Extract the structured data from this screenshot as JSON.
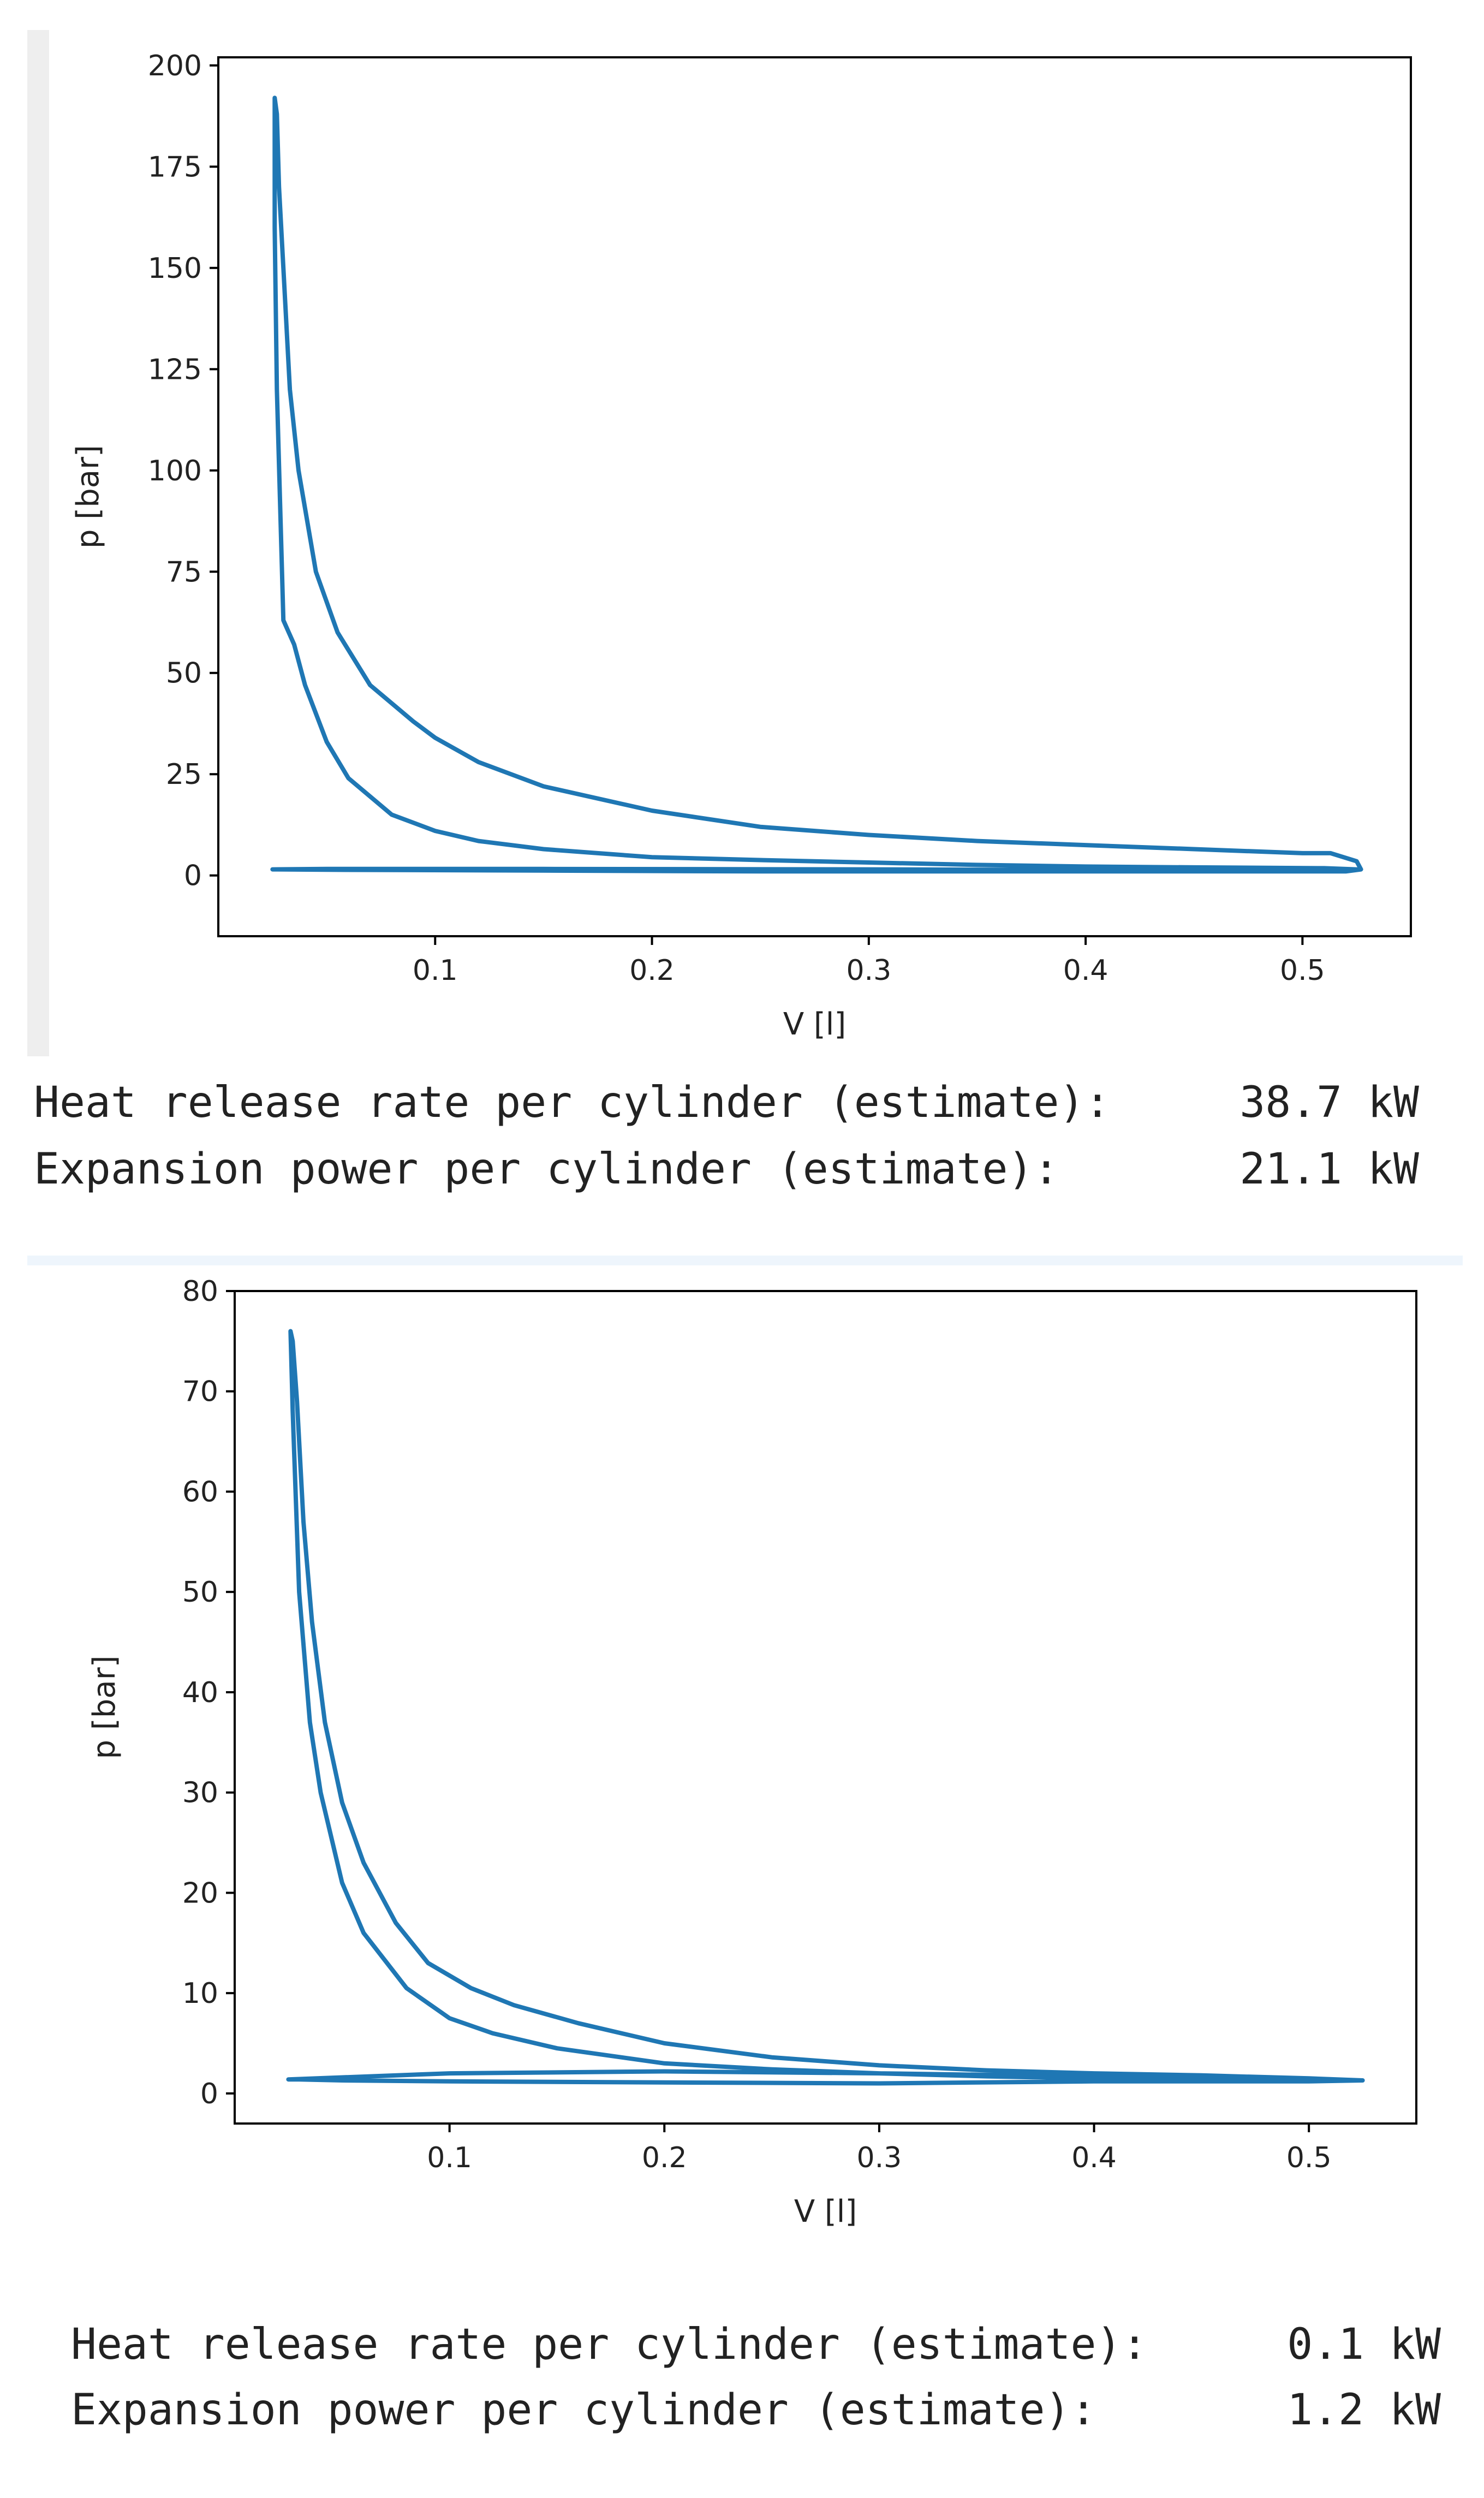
{
  "colors": {
    "series": "#1f77b4",
    "axes": "#000000",
    "text": "#222222",
    "gutter": "#eeeeee",
    "separator": "#eef5fc"
  },
  "chart_data": [
    {
      "type": "line",
      "xlabel": "V [l]",
      "ylabel": "p [bar]",
      "xlim": [
        0.0,
        0.55
      ],
      "ylim": [
        -15,
        202
      ],
      "xticks": [
        0.1,
        0.2,
        0.3,
        0.4,
        0.5
      ],
      "yticks": [
        0,
        25,
        50,
        75,
        100,
        125,
        150,
        175,
        200
      ],
      "grid": false,
      "series": [
        {
          "x": [
            0.525,
            0.51,
            0.45,
            0.4,
            0.35,
            0.3,
            0.25,
            0.2,
            0.15,
            0.12,
            0.1,
            0.08,
            0.06,
            0.05,
            0.04,
            0.035,
            0.03,
            0.027,
            0.026,
            0.026,
            0.026,
            0.027,
            0.028,
            0.03,
            0.033,
            0.037,
            0.045,
            0.055,
            0.07,
            0.09,
            0.1,
            0.12,
            0.15,
            0.2,
            0.25,
            0.3,
            0.35,
            0.4,
            0.45,
            0.5,
            0.513,
            0.525,
            0.527,
            0.52,
            0.45,
            0.35,
            0.25,
            0.15,
            0.05,
            0.025,
            0.05,
            0.15,
            0.3,
            0.45,
            0.525
          ],
          "y": [
            1.5,
            1.8,
            2.0,
            2.2,
            2.6,
            3.2,
            3.8,
            4.5,
            6.5,
            8.5,
            11,
            15,
            24,
            33,
            47,
            57,
            63,
            120,
            160,
            185,
            192,
            188,
            170,
            150,
            120,
            100,
            75,
            60,
            47,
            38,
            34,
            28,
            22,
            16,
            12,
            10,
            8.5,
            7.5,
            6.5,
            5.5,
            5.5,
            3.5,
            1.5,
            1.0,
            1.0,
            1.0,
            1.0,
            1.2,
            1.4,
            1.5,
            1.6,
            1.6,
            1.5,
            1.3,
            1.5
          ]
        }
      ]
    },
    {
      "type": "line",
      "xlabel": "V [l]",
      "ylabel": "p [bar]",
      "xlim": [
        0.0,
        0.55
      ],
      "ylim": [
        -3,
        80
      ],
      "xticks": [
        0.1,
        0.2,
        0.3,
        0.4,
        0.5
      ],
      "yticks": [
        0,
        10,
        20,
        30,
        40,
        50,
        60,
        70,
        80
      ],
      "grid": false,
      "series": [
        {
          "x": [
            0.525,
            0.45,
            0.4,
            0.35,
            0.3,
            0.25,
            0.2,
            0.15,
            0.12,
            0.1,
            0.08,
            0.06,
            0.05,
            0.04,
            0.035,
            0.03,
            0.027,
            0.026,
            0.027,
            0.029,
            0.032,
            0.036,
            0.042,
            0.05,
            0.06,
            0.075,
            0.09,
            0.11,
            0.13,
            0.16,
            0.2,
            0.25,
            0.3,
            0.35,
            0.4,
            0.45,
            0.5,
            0.525,
            0.5,
            0.4,
            0.3,
            0.2,
            0.1,
            0.05,
            0.03,
            0.025,
            0.05,
            0.1,
            0.2,
            0.3,
            0.4,
            0.5,
            0.525
          ],
          "y": [
            1.3,
            1.4,
            1.5,
            1.7,
            2.0,
            2.4,
            3.0,
            4.5,
            6.0,
            7.5,
            10.5,
            16,
            21,
            30,
            37,
            50,
            68,
            76,
            75,
            69,
            57,
            47,
            37,
            29,
            23,
            17,
            13,
            10.5,
            8.8,
            7.0,
            5.0,
            3.6,
            2.8,
            2.3,
            2.0,
            1.8,
            1.5,
            1.3,
            1.2,
            1.2,
            1.0,
            1.1,
            1.2,
            1.3,
            1.4,
            1.4,
            1.6,
            2.0,
            2.2,
            2.0,
            1.7,
            1.4,
            1.3
          ]
        }
      ]
    }
  ],
  "outputs": [
    [
      {
        "label": "Heat release rate per cylinder (estimate):",
        "value": "38.7 kW"
      },
      {
        "label": "Expansion power per cylinder (estimate):",
        "value": "21.1 kW"
      }
    ],
    [
      {
        "label": "Heat release rate per cylinder (estimate):",
        "value": "0.1 kW"
      },
      {
        "label": "Expansion power per cylinder (estimate):",
        "value": "1.2 kW"
      }
    ]
  ]
}
